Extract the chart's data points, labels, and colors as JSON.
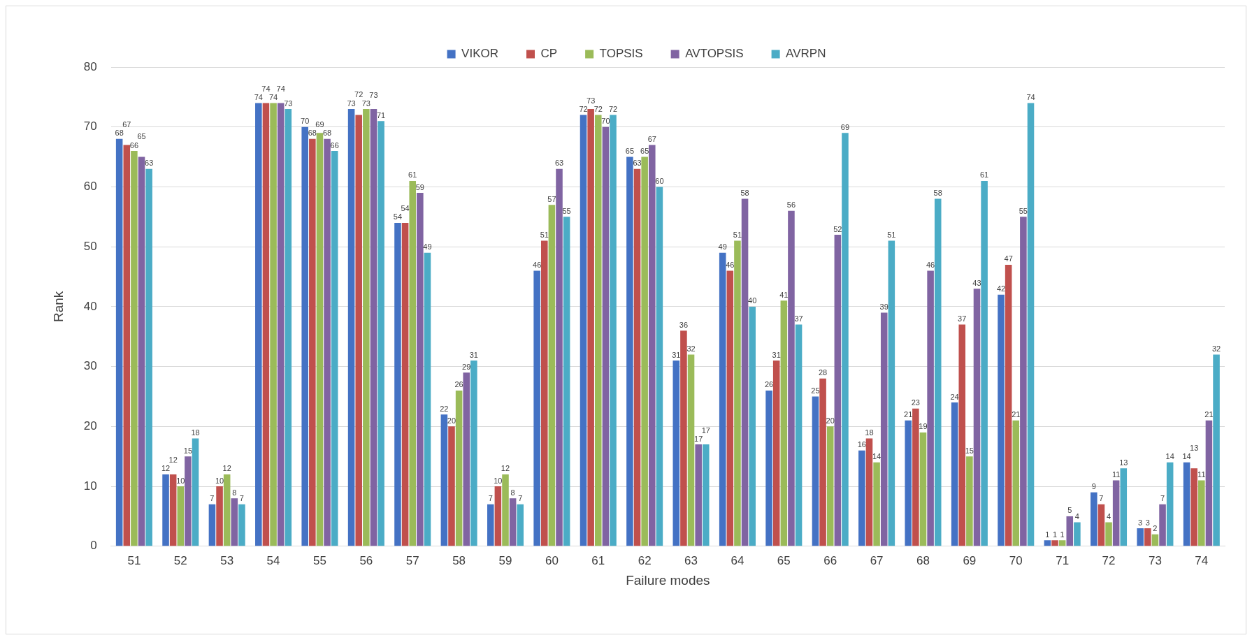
{
  "chart_data": {
    "type": "bar",
    "xlabel": "Failure modes",
    "ylabel": "Rank",
    "categories": [
      "51",
      "52",
      "53",
      "54",
      "55",
      "56",
      "57",
      "58",
      "59",
      "60",
      "61",
      "62",
      "63",
      "64",
      "65",
      "66",
      "67",
      "68",
      "69",
      "70",
      "71",
      "72",
      "73",
      "74"
    ],
    "series": [
      {
        "name": "VIKOR",
        "color": "#4472c4",
        "values": [
          68,
          12,
          7,
          74,
          70,
          73,
          54,
          22,
          7,
          46,
          72,
          65,
          31,
          49,
          26,
          25,
          16,
          21,
          24,
          42,
          1,
          9,
          3,
          14
        ]
      },
      {
        "name": "CP",
        "color": "#c0504d",
        "values": [
          67,
          12,
          10,
          74,
          68,
          72,
          54,
          20,
          10,
          51,
          73,
          63,
          36,
          46,
          31,
          28,
          18,
          23,
          37,
          47,
          1,
          7,
          3,
          13
        ]
      },
      {
        "name": "TOPSIS",
        "color": "#9bbb59",
        "values": [
          66,
          10,
          12,
          74,
          69,
          73,
          61,
          26,
          12,
          57,
          72,
          65,
          32,
          51,
          41,
          20,
          14,
          19,
          15,
          21,
          1,
          4,
          2,
          11
        ]
      },
      {
        "name": "AVTOPSIS",
        "color": "#8064a2",
        "values": [
          65,
          15,
          8,
          74,
          68,
          73,
          59,
          29,
          8,
          63,
          70,
          67,
          17,
          58,
          56,
          52,
          39,
          46,
          43,
          55,
          5,
          11,
          7,
          21
        ]
      },
      {
        "name": "AVRPN",
        "color": "#4bacc6",
        "values": [
          63,
          18,
          7,
          73,
          66,
          71,
          49,
          31,
          7,
          55,
          72,
          60,
          17,
          40,
          37,
          69,
          51,
          58,
          61,
          74,
          4,
          13,
          14,
          32
        ]
      }
    ],
    "ylim": [
      0,
      80
    ],
    "yticks": [
      0,
      10,
      20,
      30,
      40,
      50,
      60,
      70,
      80
    ],
    "grid": "y",
    "legend": "top",
    "data_labels": true
  }
}
